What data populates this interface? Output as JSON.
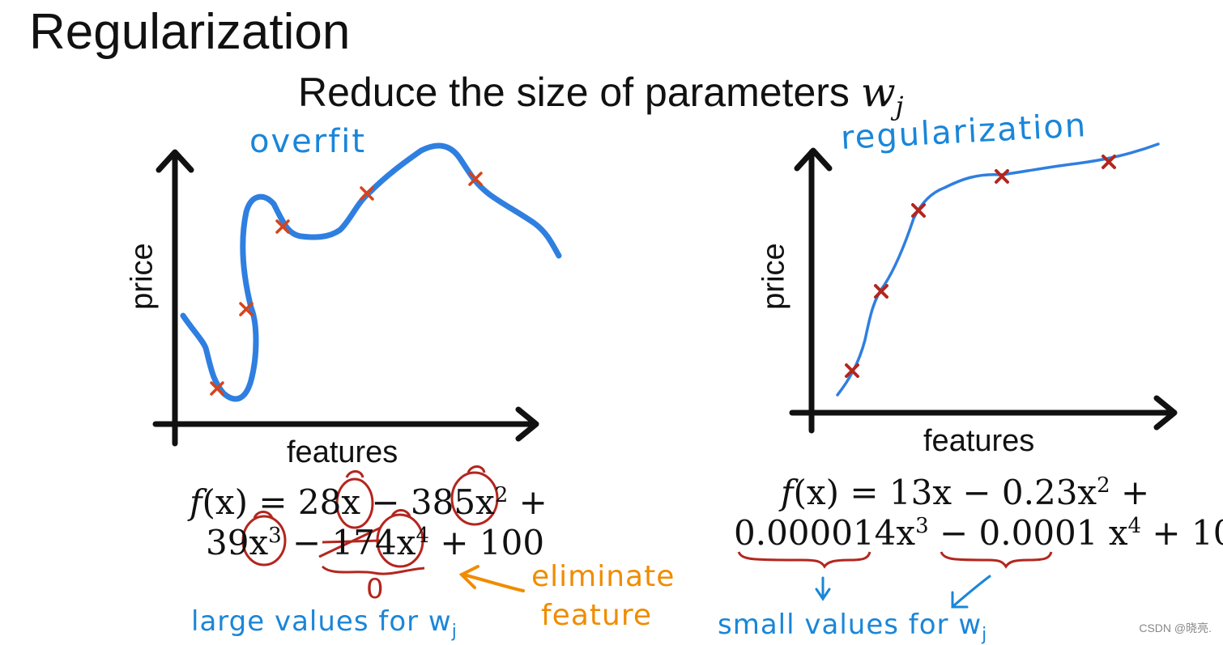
{
  "slide": {
    "title": "Regularization",
    "subtitle_text": "Reduce the size of parameters",
    "subtitle_var": "w",
    "subtitle_sub": "j"
  },
  "left_plot": {
    "annotation": "overfit",
    "ylabel": "price",
    "xlabel": "features",
    "formula_line1_a": "f",
    "formula_line1_b": "(x) = 28x − 385x",
    "formula_line1_exp": "2",
    "formula_line1_c": " +",
    "formula_line2_a": "39x",
    "formula_line2_exp1": "3",
    "formula_line2_b": " − 174x",
    "formula_line2_exp2": "4",
    "formula_line2_c": " + 100",
    "zero_note": "0",
    "large_values_note": "large values for w",
    "large_values_sub": "j"
  },
  "eliminate_note_line1": "eliminate",
  "eliminate_note_line2": "feature",
  "right_plot": {
    "annotation": "regularization",
    "ylabel": "price",
    "xlabel": "features",
    "formula_line1": "(x) = 13x − 0.23x",
    "formula_line1_f": "f",
    "formula_line1_exp": "2",
    "formula_line1_c": " +",
    "formula_line2_a": "0.000014x",
    "formula_line2_exp1": "3",
    "formula_line2_b": " − 0.0001 x",
    "formula_line2_exp2": "4",
    "formula_line2_c": " + 10",
    "small_values_note": "small values for w",
    "small_values_sub": "j"
  },
  "watermark": "CSDN @晓亮.",
  "colors": {
    "curve_blue": "#2f7fe0",
    "note_blue": "#1a86d9",
    "cross_red": "#c0281c",
    "circle_red": "#b3261e",
    "note_orange": "#f08c00"
  }
}
